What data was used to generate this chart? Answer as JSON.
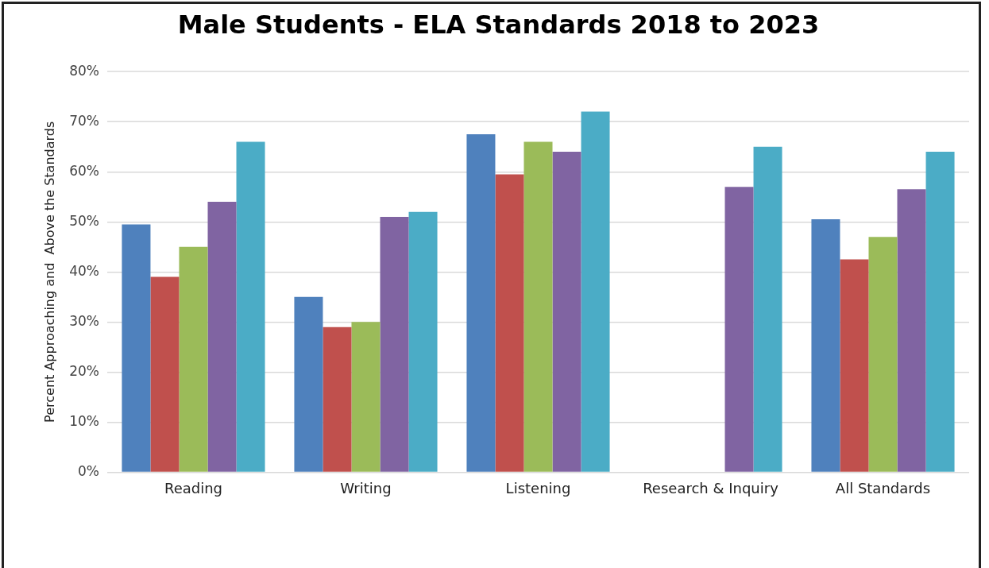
{
  "chart_data": {
    "type": "bar",
    "title": "Male Students - ELA Standards 2018 to 2023",
    "ylabel": "Percent Approaching and  Above the Standards",
    "categories": [
      "Reading",
      "Writing",
      "Listening",
      "Research & Inquiry",
      "All Standards"
    ],
    "series": [
      {
        "color": "#4f81bd",
        "values": [
          49.5,
          35,
          67.5,
          null,
          50.5
        ]
      },
      {
        "color": "#c0504d",
        "values": [
          39,
          29,
          59.5,
          null,
          42.5
        ]
      },
      {
        "color": "#9bbb59",
        "values": [
          45,
          30,
          66,
          null,
          47
        ]
      },
      {
        "color": "#8064a2",
        "values": [
          54,
          51,
          64,
          57,
          56.5
        ]
      },
      {
        "color": "#4bacc6",
        "values": [
          66,
          52,
          72,
          65,
          64
        ]
      }
    ],
    "ylim": [
      0,
      80
    ],
    "yticks": [
      {
        "value": 0,
        "label": "0%"
      },
      {
        "value": 10,
        "label": "10%"
      },
      {
        "value": 20,
        "label": "20%"
      },
      {
        "value": 30,
        "label": "30%"
      },
      {
        "value": 40,
        "label": "40%"
      },
      {
        "value": 50,
        "label": "50%"
      },
      {
        "value": 60,
        "label": "60%"
      },
      {
        "value": 70,
        "label": "70%"
      },
      {
        "value": 80,
        "label": "80%"
      }
    ],
    "grid": "y",
    "legend": false
  }
}
